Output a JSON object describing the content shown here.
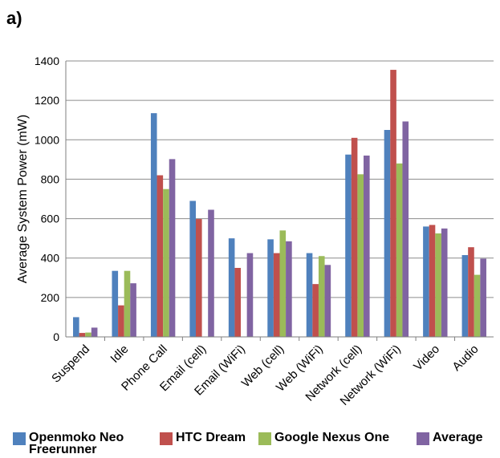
{
  "panel_label": "a)",
  "chart_data": {
    "type": "bar",
    "title": "",
    "xlabel": "",
    "ylabel": "Average System Power (mW)",
    "ylim": [
      0,
      1400
    ],
    "yticks": [
      0,
      200,
      400,
      600,
      800,
      1000,
      1200,
      1400
    ],
    "grid": true,
    "legend_position": "bottom",
    "categories": [
      "Suspend",
      "Idle",
      "Phone Call",
      "Email (cell)",
      "Email (WiFi)",
      "Web (cell)",
      "Web (WiFi)",
      "Network (cell)",
      "Network (WiFi)",
      "Video",
      "Audio"
    ],
    "series": [
      {
        "name": "Openmoko Neo Freerunner",
        "color": "#4f81bd",
        "values": [
          100,
          335,
          1135,
          690,
          500,
          495,
          425,
          925,
          1050,
          560,
          415
        ]
      },
      {
        "name": "HTC Dream",
        "color": "#c0504d",
        "values": [
          20,
          160,
          820,
          598,
          350,
          425,
          268,
          1010,
          1355,
          568,
          455
        ]
      },
      {
        "name": "Google Nexus One",
        "color": "#9bbb59",
        "values": [
          22,
          335,
          750,
          0,
          0,
          540,
          410,
          825,
          880,
          525,
          315
        ]
      },
      {
        "name": "Average",
        "color": "#8064a2",
        "values": [
          47,
          272,
          902,
          645,
          425,
          485,
          365,
          920,
          1093,
          550,
          397
        ]
      }
    ]
  }
}
